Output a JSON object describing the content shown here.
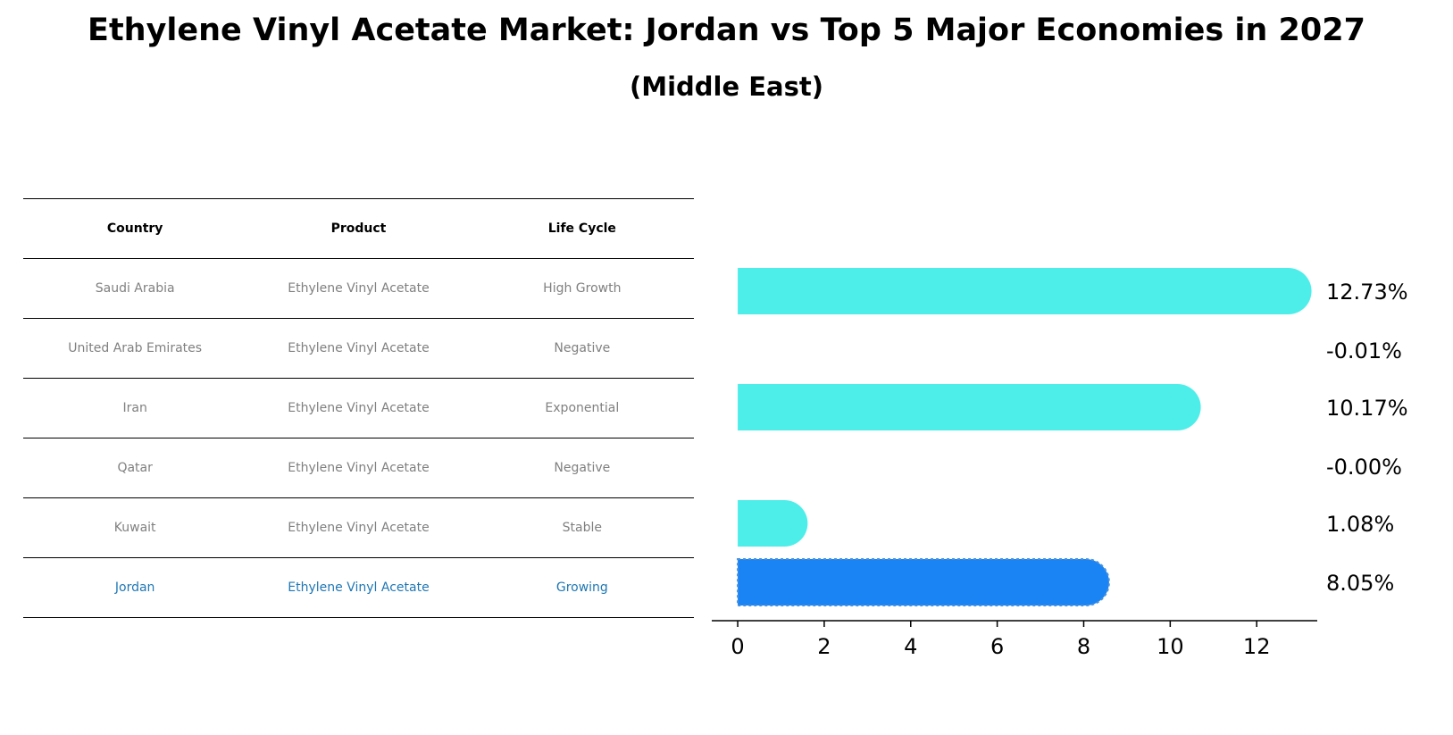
{
  "title": "Ethylene Vinyl Acetate Market: Jordan vs Top 5 Major Economies in 2027",
  "subtitle": "(Middle East)",
  "table": {
    "headers": [
      "Country",
      "Product",
      "Life Cycle"
    ],
    "rows": [
      {
        "country": "Saudi Arabia",
        "product": "Ethylene Vinyl Acetate",
        "life_cycle": "High Growth"
      },
      {
        "country": "United Arab Emirates",
        "product": "Ethylene Vinyl Acetate",
        "life_cycle": "Negative"
      },
      {
        "country": "Iran",
        "product": "Ethylene Vinyl Acetate",
        "life_cycle": "Exponential"
      },
      {
        "country": "Qatar",
        "product": "Ethylene Vinyl Acetate",
        "life_cycle": "Negative"
      },
      {
        "country": "Kuwait",
        "product": "Ethylene Vinyl Acetate",
        "life_cycle": "Stable"
      },
      {
        "country": "Jordan",
        "product": "Ethylene Vinyl Acetate",
        "life_cycle": "Growing"
      }
    ]
  },
  "chart_data": {
    "type": "bar",
    "orientation": "horizontal",
    "categories": [
      "Saudi Arabia",
      "United Arab Emirates",
      "Iran",
      "Qatar",
      "Kuwait",
      "Jordan"
    ],
    "values": [
      12.73,
      -0.01,
      10.17,
      -0.0,
      1.08,
      8.05
    ],
    "data_labels": [
      "12.73%",
      "-0.01%",
      "10.17%",
      "-0.00%",
      "1.08%",
      "8.05%"
    ],
    "highlight": "Jordan",
    "xlim": [
      -0.6,
      13.4
    ],
    "xticks": [
      0,
      2,
      4,
      6,
      8,
      10,
      12
    ],
    "colors": {
      "default": "#4deee9",
      "highlight": "#1a84f5"
    }
  }
}
